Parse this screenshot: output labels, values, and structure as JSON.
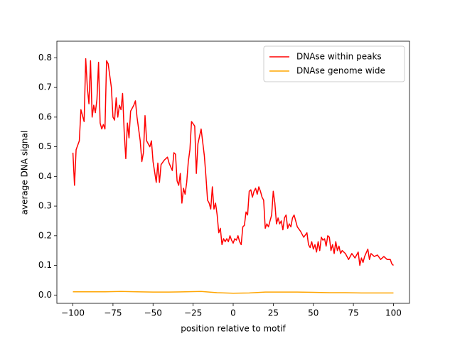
{
  "chart_data": {
    "type": "line",
    "xlabel": "position relative to motif",
    "ylabel": "average DNA signal",
    "xlim": [
      -110,
      110
    ],
    "ylim": [
      -0.028,
      0.856
    ],
    "xticks": [
      {
        "value": -100,
        "label": "−100"
      },
      {
        "value": -75,
        "label": "−75"
      },
      {
        "value": -50,
        "label": "−50"
      },
      {
        "value": -25,
        "label": "−25"
      },
      0,
      25,
      50,
      75,
      100
    ],
    "yticks": [
      {
        "value": 0,
        "label": "0.0"
      },
      0.1,
      0.2,
      0.3,
      0.4,
      0.5,
      0.6,
      0.7,
      0.8
    ],
    "legend": "upper right",
    "grid": false,
    "series": [
      {
        "name": "DNAse within peaks",
        "color": "#ff0000",
        "x": [
          -100,
          -99,
          -98,
          -96,
          -95,
          -93,
          -92,
          -91,
          -90,
          -89,
          -88,
          -87,
          -86,
          -85,
          -84,
          -83,
          -82,
          -81,
          -80,
          -79,
          -78,
          -77,
          -76,
          -75,
          -74,
          -73,
          -72,
          -71,
          -70,
          -69,
          -68,
          -67,
          -66,
          -65,
          -64,
          -62,
          -61,
          -60,
          -58,
          -57,
          -56,
          -55,
          -54,
          -52,
          -51,
          -50,
          -48,
          -47,
          -46,
          -45,
          -43,
          -41,
          -40,
          -38,
          -37,
          -36,
          -35,
          -34,
          -33,
          -32,
          -31,
          -30,
          -29,
          -28,
          -27,
          -26,
          -24,
          -23,
          -22,
          -20,
          -18,
          -17,
          -16,
          -15,
          -14,
          -13,
          -12,
          -11,
          -10,
          -9,
          -8,
          -7,
          -6,
          -5,
          -4,
          -3,
          -2,
          -1,
          0,
          1,
          2,
          3,
          4,
          5,
          6,
          7,
          8,
          9,
          10,
          11,
          12,
          13,
          14,
          15,
          16,
          17,
          18,
          19,
          20,
          21,
          22,
          23,
          24,
          25,
          26,
          27,
          28,
          29,
          30,
          31,
          32,
          33,
          34,
          35,
          36,
          37,
          38,
          39,
          40,
          42,
          44,
          46,
          47,
          48,
          49,
          50,
          51,
          52,
          53,
          54,
          55,
          56,
          57,
          58,
          59,
          60,
          61,
          62,
          63,
          64,
          65,
          66,
          67,
          68,
          70,
          72,
          74,
          76,
          78,
          79,
          80,
          81,
          82,
          84,
          85,
          86,
          88,
          90,
          92,
          94,
          96,
          98,
          99,
          100
        ],
        "values": [
          0.48,
          0.37,
          0.49,
          0.52,
          0.625,
          0.585,
          0.797,
          0.7,
          0.645,
          0.79,
          0.6,
          0.64,
          0.615,
          0.66,
          0.785,
          0.58,
          0.56,
          0.575,
          0.56,
          0.79,
          0.78,
          0.74,
          0.7,
          0.6,
          0.59,
          0.665,
          0.6,
          0.64,
          0.625,
          0.68,
          0.55,
          0.46,
          0.58,
          0.53,
          0.62,
          0.64,
          0.655,
          0.6,
          0.52,
          0.45,
          0.48,
          0.605,
          0.52,
          0.5,
          0.52,
          0.45,
          0.38,
          0.445,
          0.38,
          0.44,
          0.455,
          0.465,
          0.445,
          0.42,
          0.48,
          0.475,
          0.385,
          0.37,
          0.41,
          0.31,
          0.36,
          0.34,
          0.38,
          0.45,
          0.49,
          0.585,
          0.57,
          0.41,
          0.51,
          0.56,
          0.47,
          0.4,
          0.32,
          0.31,
          0.29,
          0.365,
          0.29,
          0.31,
          0.27,
          0.21,
          0.225,
          0.17,
          0.19,
          0.18,
          0.19,
          0.18,
          0.2,
          0.185,
          0.175,
          0.19,
          0.185,
          0.2,
          0.18,
          0.17,
          0.23,
          0.235,
          0.28,
          0.27,
          0.35,
          0.355,
          0.33,
          0.35,
          0.36,
          0.34,
          0.365,
          0.35,
          0.33,
          0.32,
          0.225,
          0.24,
          0.23,
          0.25,
          0.27,
          0.35,
          0.31,
          0.24,
          0.26,
          0.24,
          0.25,
          0.22,
          0.26,
          0.27,
          0.225,
          0.24,
          0.23,
          0.26,
          0.27,
          0.25,
          0.23,
          0.215,
          0.195,
          0.21,
          0.17,
          0.16,
          0.18,
          0.155,
          0.17,
          0.145,
          0.18,
          0.15,
          0.195,
          0.185,
          0.19,
          0.165,
          0.2,
          0.195,
          0.15,
          0.17,
          0.14,
          0.18,
          0.15,
          0.165,
          0.14,
          0.15,
          0.14,
          0.12,
          0.14,
          0.125,
          0.145,
          0.1,
          0.125,
          0.11,
          0.13,
          0.155,
          0.12,
          0.14,
          0.13,
          0.135,
          0.12,
          0.13,
          0.12,
          0.12,
          0.105,
          0.1
        ]
      },
      {
        "name": "DNAse genome wide",
        "color": "#ffa500",
        "x": [
          -100,
          -90,
          -80,
          -70,
          -60,
          -50,
          -40,
          -30,
          -20,
          -10,
          0,
          10,
          20,
          30,
          40,
          50,
          60,
          70,
          80,
          90,
          100
        ],
        "values": [
          0.011,
          0.011,
          0.011,
          0.012,
          0.011,
          0.01,
          0.01,
          0.011,
          0.012,
          0.008,
          0.006,
          0.007,
          0.01,
          0.01,
          0.01,
          0.009,
          0.008,
          0.008,
          0.007,
          0.007,
          0.007
        ]
      }
    ]
  }
}
